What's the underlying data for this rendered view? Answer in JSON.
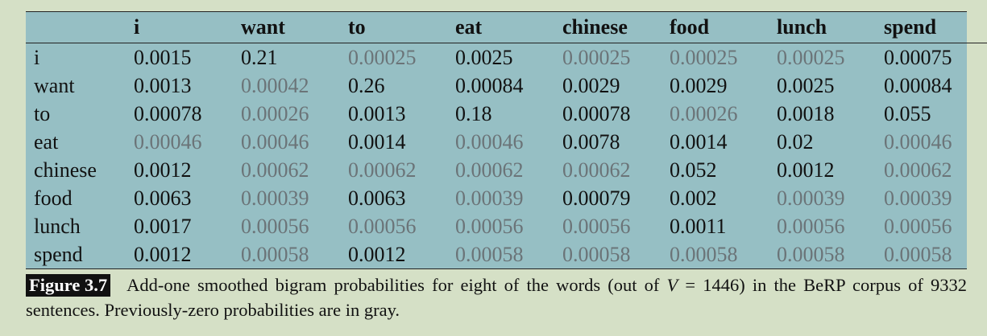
{
  "table": {
    "columns": [
      "i",
      "want",
      "to",
      "eat",
      "chinese",
      "food",
      "lunch",
      "spend"
    ],
    "rows": [
      {
        "label": "i",
        "cells": [
          {
            "value": "0.0015",
            "previously_zero": false
          },
          {
            "value": "0.21",
            "previously_zero": false
          },
          {
            "value": "0.00025",
            "previously_zero": true
          },
          {
            "value": "0.0025",
            "previously_zero": false
          },
          {
            "value": "0.00025",
            "previously_zero": true
          },
          {
            "value": "0.00025",
            "previously_zero": true
          },
          {
            "value": "0.00025",
            "previously_zero": true
          },
          {
            "value": "0.00075",
            "previously_zero": false
          }
        ]
      },
      {
        "label": "want",
        "cells": [
          {
            "value": "0.0013",
            "previously_zero": false
          },
          {
            "value": "0.00042",
            "previously_zero": true
          },
          {
            "value": "0.26",
            "previously_zero": false
          },
          {
            "value": "0.00084",
            "previously_zero": false
          },
          {
            "value": "0.0029",
            "previously_zero": false
          },
          {
            "value": "0.0029",
            "previously_zero": false
          },
          {
            "value": "0.0025",
            "previously_zero": false
          },
          {
            "value": "0.00084",
            "previously_zero": false
          }
        ]
      },
      {
        "label": "to",
        "cells": [
          {
            "value": "0.00078",
            "previously_zero": false
          },
          {
            "value": "0.00026",
            "previously_zero": true
          },
          {
            "value": "0.0013",
            "previously_zero": false
          },
          {
            "value": "0.18",
            "previously_zero": false
          },
          {
            "value": "0.00078",
            "previously_zero": false
          },
          {
            "value": "0.00026",
            "previously_zero": true
          },
          {
            "value": "0.0018",
            "previously_zero": false
          },
          {
            "value": "0.055",
            "previously_zero": false
          }
        ]
      },
      {
        "label": "eat",
        "cells": [
          {
            "value": "0.00046",
            "previously_zero": true
          },
          {
            "value": "0.00046",
            "previously_zero": true
          },
          {
            "value": "0.0014",
            "previously_zero": false
          },
          {
            "value": "0.00046",
            "previously_zero": true
          },
          {
            "value": "0.0078",
            "previously_zero": false
          },
          {
            "value": "0.0014",
            "previously_zero": false
          },
          {
            "value": "0.02",
            "previously_zero": false
          },
          {
            "value": "0.00046",
            "previously_zero": true
          }
        ]
      },
      {
        "label": "chinese",
        "cells": [
          {
            "value": "0.0012",
            "previously_zero": false
          },
          {
            "value": "0.00062",
            "previously_zero": true
          },
          {
            "value": "0.00062",
            "previously_zero": true
          },
          {
            "value": "0.00062",
            "previously_zero": true
          },
          {
            "value": "0.00062",
            "previously_zero": true
          },
          {
            "value": "0.052",
            "previously_zero": false
          },
          {
            "value": "0.0012",
            "previously_zero": false
          },
          {
            "value": "0.00062",
            "previously_zero": true
          }
        ]
      },
      {
        "label": "food",
        "cells": [
          {
            "value": "0.0063",
            "previously_zero": false
          },
          {
            "value": "0.00039",
            "previously_zero": true
          },
          {
            "value": "0.0063",
            "previously_zero": false
          },
          {
            "value": "0.00039",
            "previously_zero": true
          },
          {
            "value": "0.00079",
            "previously_zero": false
          },
          {
            "value": "0.002",
            "previously_zero": false
          },
          {
            "value": "0.00039",
            "previously_zero": true
          },
          {
            "value": "0.00039",
            "previously_zero": true
          }
        ]
      },
      {
        "label": "lunch",
        "cells": [
          {
            "value": "0.0017",
            "previously_zero": false
          },
          {
            "value": "0.00056",
            "previously_zero": true
          },
          {
            "value": "0.00056",
            "previously_zero": true
          },
          {
            "value": "0.00056",
            "previously_zero": true
          },
          {
            "value": "0.00056",
            "previously_zero": true
          },
          {
            "value": "0.0011",
            "previously_zero": false
          },
          {
            "value": "0.00056",
            "previously_zero": true
          },
          {
            "value": "0.00056",
            "previously_zero": true
          }
        ]
      },
      {
        "label": "spend",
        "cells": [
          {
            "value": "0.0012",
            "previously_zero": false
          },
          {
            "value": "0.00058",
            "previously_zero": true
          },
          {
            "value": "0.0012",
            "previously_zero": false
          },
          {
            "value": "0.00058",
            "previously_zero": true
          },
          {
            "value": "0.00058",
            "previously_zero": true
          },
          {
            "value": "0.00058",
            "previously_zero": true
          },
          {
            "value": "0.00058",
            "previously_zero": true
          },
          {
            "value": "0.00058",
            "previously_zero": true
          }
        ]
      }
    ]
  },
  "caption": {
    "label": "Figure 3.7",
    "text_before_math": "Add-one smoothed bigram probabilities for eight of the words (out of ",
    "math_var": "V",
    "math_rest": " = 1446",
    "text_after_math": ") in the BeRP corpus of 9332 sentences. Previously-zero probabilities are in gray."
  },
  "colors": {
    "background": "#d5e0c6",
    "table_background": "#96bfc4",
    "previously_zero_text": "#6b7478",
    "normal_text": "#111111",
    "figure_label_background": "#111111",
    "figure_label_text": "#ffffff"
  }
}
